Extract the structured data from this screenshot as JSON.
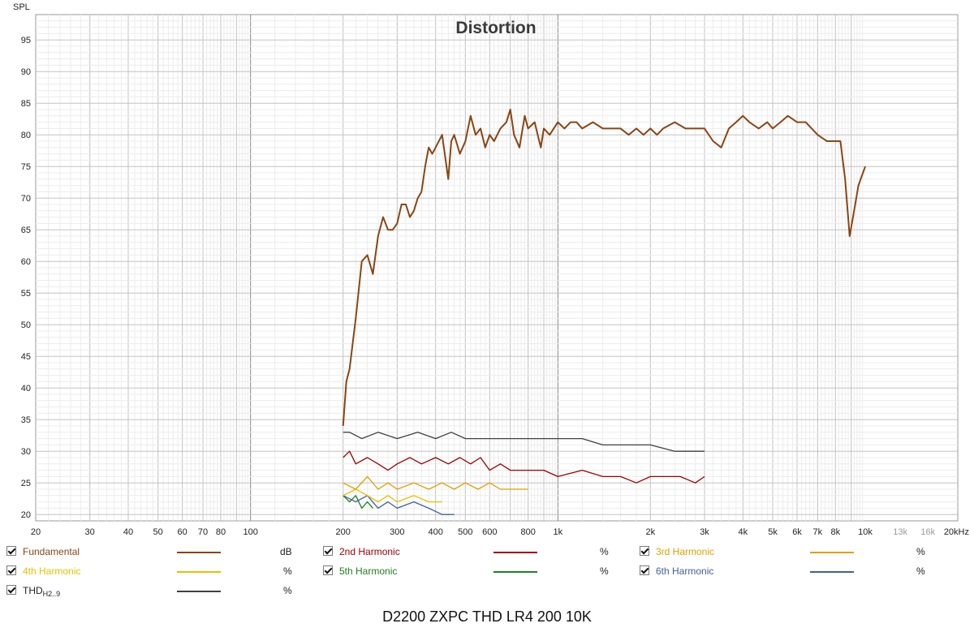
{
  "chart_data": {
    "type": "line",
    "title": "Distortion",
    "ylabel": "SPL",
    "xlabel": "",
    "x_scale": "log",
    "xlim": [
      20,
      20000
    ],
    "ylim": [
      19,
      99
    ],
    "grid": true,
    "x_tick_values": [
      20,
      30,
      40,
      50,
      60,
      70,
      80,
      100,
      200,
      300,
      400,
      500,
      600,
      800,
      1000,
      2000,
      3000,
      4000,
      5000,
      6000,
      7000,
      8000,
      10000,
      13000,
      16000,
      20000
    ],
    "x_tick_labels": [
      "20",
      "30",
      "40",
      "50",
      "60",
      "70",
      "80",
      "100",
      "200",
      "300",
      "400",
      "500",
      "600",
      "800",
      "1k",
      "2k",
      "3k",
      "4k",
      "5k",
      "6k",
      "7k",
      "8k",
      "10k",
      "13k",
      "16k",
      "20kHz"
    ],
    "y_ticks": [
      20,
      25,
      30,
      35,
      40,
      45,
      50,
      55,
      60,
      65,
      70,
      75,
      80,
      85,
      90,
      95
    ],
    "series": [
      {
        "name": "Fundamental",
        "unit": "dB",
        "color": "#8b4513",
        "x": [
          200,
          205,
          210,
          220,
          230,
          240,
          250,
          260,
          270,
          280,
          290,
          300,
          310,
          320,
          330,
          340,
          350,
          360,
          370,
          380,
          390,
          400,
          420,
          440,
          450,
          460,
          480,
          500,
          520,
          540,
          560,
          580,
          600,
          620,
          650,
          680,
          700,
          720,
          750,
          780,
          800,
          840,
          880,
          900,
          940,
          1000,
          1050,
          1100,
          1150,
          1200,
          1300,
          1400,
          1500,
          1600,
          1700,
          1800,
          1900,
          2000,
          2100,
          2200,
          2400,
          2600,
          2800,
          3000,
          3200,
          3400,
          3600,
          3800,
          4000,
          4200,
          4500,
          4800,
          5000,
          5300,
          5600,
          6000,
          6400,
          7000,
          7500,
          8000,
          8300,
          8600,
          8900,
          9200,
          9500,
          10000
        ],
        "y": [
          34,
          41,
          43,
          51,
          60,
          61,
          58,
          64,
          67,
          65,
          65,
          66,
          69,
          69,
          67,
          68,
          70,
          71,
          75,
          78,
          77,
          78,
          80,
          73,
          79,
          80,
          77,
          79,
          83,
          80,
          81,
          78,
          80,
          79,
          81,
          82,
          84,
          80,
          78,
          83,
          81,
          82,
          78,
          81,
          80,
          82,
          81,
          82,
          82,
          81,
          82,
          81,
          81,
          81,
          80,
          81,
          80,
          81,
          80,
          81,
          82,
          81,
          81,
          81,
          79,
          78,
          81,
          82,
          83,
          82,
          81,
          82,
          81,
          82,
          83,
          82,
          82,
          80,
          79,
          79,
          79,
          73,
          64,
          68,
          72,
          75
        ]
      },
      {
        "name": "2nd Harmonic",
        "unit": "%",
        "color": "#a00000",
        "x": [
          200,
          210,
          220,
          240,
          260,
          280,
          300,
          330,
          360,
          400,
          440,
          480,
          520,
          560,
          600,
          650,
          700,
          800,
          900,
          1000,
          1200,
          1400,
          1600,
          1800,
          2000,
          2200,
          2500,
          2800,
          3000
        ],
        "y": [
          29,
          30,
          28,
          29,
          28,
          27,
          28,
          29,
          28,
          29,
          28,
          29,
          28,
          29,
          27,
          28,
          27,
          27,
          27,
          26,
          27,
          26,
          26,
          25,
          26,
          26,
          26,
          25,
          26
        ]
      },
      {
        "name": "3rd Harmonic",
        "unit": "%",
        "color": "#e0a000",
        "x": [
          200,
          220,
          240,
          260,
          280,
          300,
          340,
          380,
          420,
          460,
          500,
          550,
          600,
          650,
          700,
          800
        ],
        "y": [
          25,
          24,
          26,
          24,
          25,
          24,
          25,
          24,
          25,
          24,
          25,
          24,
          25,
          24,
          24,
          24
        ]
      },
      {
        "name": "4th Harmonic",
        "unit": "%",
        "color": "#e8c000",
        "x": [
          200,
          220,
          240,
          260,
          280,
          300,
          340,
          380,
          420
        ],
        "y": [
          23,
          24,
          23,
          22,
          23,
          22,
          23,
          22,
          22
        ]
      },
      {
        "name": "5th Harmonic",
        "unit": "%",
        "color": "#208020",
        "x": [
          200,
          210,
          220,
          230,
          240,
          250
        ],
        "y": [
          23,
          22,
          23,
          21,
          22,
          21
        ]
      },
      {
        "name": "6th Harmonic",
        "unit": "%",
        "color": "#4060a0",
        "x": [
          200,
          220,
          240,
          260,
          280,
          300,
          340,
          380,
          420,
          460
        ],
        "y": [
          23,
          22,
          23,
          21,
          22,
          21,
          22,
          21,
          20,
          20
        ]
      },
      {
        "name": "THD",
        "name_sub": "H2..9",
        "unit": "%",
        "color": "#404040",
        "x": [
          200,
          210,
          230,
          260,
          300,
          350,
          400,
          450,
          500,
          600,
          700,
          800,
          900,
          1000,
          1200,
          1400,
          1600,
          2000,
          2400,
          2800,
          3000
        ],
        "y": [
          33,
          33,
          32,
          33,
          32,
          33,
          32,
          33,
          32,
          32,
          32,
          32,
          32,
          32,
          32,
          31,
          31,
          31,
          30,
          30,
          30
        ]
      }
    ]
  },
  "legend_items": [
    {
      "name": "Fundamental",
      "unit": "dB",
      "color": "#8b4513"
    },
    {
      "name": "2nd Harmonic",
      "unit": "%",
      "color": "#a00000"
    },
    {
      "name": "3rd Harmonic",
      "unit": "%",
      "color": "#e0a000"
    },
    {
      "name": "4th Harmonic",
      "unit": "%",
      "color": "#e8c000"
    },
    {
      "name": "5th Harmonic",
      "unit": "%",
      "color": "#208020"
    },
    {
      "name": "6th Harmonic",
      "unit": "%",
      "color": "#4060a0"
    },
    {
      "name": "THD",
      "sub": "H2..9",
      "unit": "%",
      "color": "#404040"
    }
  ],
  "footer": "D2200 ZXPC THD LR4 200 10K"
}
